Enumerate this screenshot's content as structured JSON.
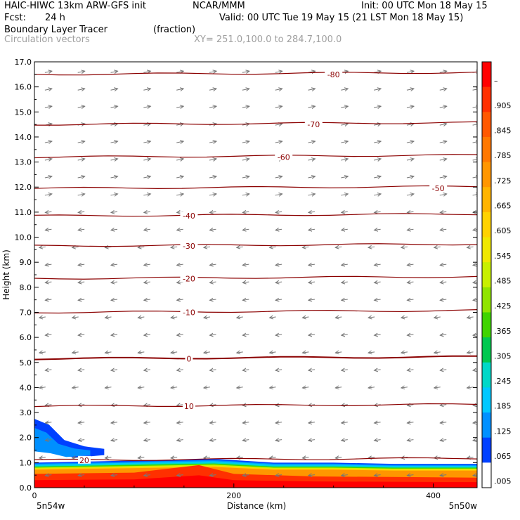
{
  "header": {
    "model": "HAIC-HIWC 13km ARW-GFS init",
    "org": "NCAR/MMM",
    "init": "Init: 00 UTC Mon 18 May 15",
    "fcst_label": "Fcst:",
    "fcst_value": "24 h",
    "valid": "Valid: 00 UTC Tue 19 May 15 (21 LST Mon 18 May 15)",
    "field_name": "Boundary Layer Tracer",
    "field_unit": "(fraction)",
    "vector_name": "Circulation vectors",
    "xy": "XY= 251.0,100.0 to 284.7,100.0"
  },
  "chart_data": {
    "type": "contour-cross-section",
    "x_axis": {
      "label": "Distance (km)",
      "range": [
        0,
        444
      ],
      "tick_labels": [
        "0",
        "200",
        "400"
      ],
      "tick_values": [
        0,
        200,
        400
      ],
      "start_point": "5n54w",
      "end_point": "5n50w"
    },
    "y_axis": {
      "label": "Height (km)",
      "range": [
        0,
        17
      ],
      "tick_labels": [
        "0.0",
        "1.0",
        "2.0",
        "3.0",
        "4.0",
        "5.0",
        "6.0",
        "7.0",
        "8.0",
        "9.0",
        "10.0",
        "11.0",
        "12.0",
        "13.0",
        "14.0",
        "15.0",
        "16.0",
        "17.0"
      ]
    },
    "colorbar": {
      "labels": [
        "–",
        ".905",
        ".845",
        ".785",
        ".725",
        ".665",
        ".605",
        ".545",
        ".485",
        ".425",
        ".365",
        ".305",
        ".245",
        ".185",
        ".125",
        ".065",
        ".005"
      ],
      "colors": [
        "#ff0000",
        "#ff3000",
        "#ff5800",
        "#ff7800",
        "#ff9600",
        "#ffb400",
        "#ffd200",
        "#f0e800",
        "#c8f000",
        "#90e400",
        "#40d400",
        "#00c850",
        "#00d8c8",
        "#00c8ff",
        "#0090ff",
        "#0040ff",
        "#ffffff"
      ]
    },
    "temperature_contours": {
      "color": "#8b0000",
      "levels": [
        {
          "label": "-80",
          "height": 16.5,
          "label_x": [
            300
          ]
        },
        {
          "label": "-70",
          "height": 14.5,
          "label_x": [
            280
          ]
        },
        {
          "label": "-60",
          "height": 13.2,
          "label_x": [
            250
          ]
        },
        {
          "label": "-50",
          "height": 11.95,
          "label_x": [
            405
          ]
        },
        {
          "label": "-40",
          "height": 10.85,
          "label_x": [
            155
          ]
        },
        {
          "label": "-30",
          "height": 9.65,
          "label_x": [
            155,
            455
          ]
        },
        {
          "label": "-20",
          "height": 8.35,
          "label_x": [
            155,
            455
          ]
        },
        {
          "label": "-10",
          "height": 7.0,
          "label_x": [
            155,
            455
          ]
        },
        {
          "label": "0",
          "height": 5.15,
          "label_x": [
            155,
            455
          ]
        },
        {
          "label": "10",
          "height": 3.25,
          "label_x": [
            155,
            455
          ]
        },
        {
          "label": "20",
          "height": 1.1,
          "label_x": [
            50,
            455
          ]
        }
      ]
    },
    "tracer_surface_layer": {
      "top_height_km": [
        [
          0,
          1.0
        ],
        [
          60,
          1.05
        ],
        [
          120,
          1.1
        ],
        [
          180,
          1.15
        ],
        [
          240,
          1.0
        ],
        [
          300,
          1.0
        ],
        [
          360,
          0.95
        ],
        [
          444,
          0.95
        ]
      ],
      "red_top_height_km": [
        [
          0,
          0.55
        ],
        [
          100,
          0.6
        ],
        [
          165,
          0.9
        ],
        [
          200,
          0.55
        ],
        [
          280,
          0.45
        ],
        [
          444,
          0.4
        ]
      ]
    },
    "tracer_plume": {
      "top_height_km": [
        [
          0,
          2.75
        ],
        [
          15,
          2.5
        ],
        [
          30,
          1.9
        ],
        [
          50,
          1.65
        ],
        [
          70,
          1.55
        ],
        [
          70,
          1.3
        ],
        [
          40,
          1.2
        ],
        [
          20,
          1.4
        ],
        [
          0,
          1.5
        ]
      ]
    },
    "vectors": {
      "upper_direction": "east",
      "lower_direction": "west",
      "reversal_height_km": 11.5
    }
  }
}
